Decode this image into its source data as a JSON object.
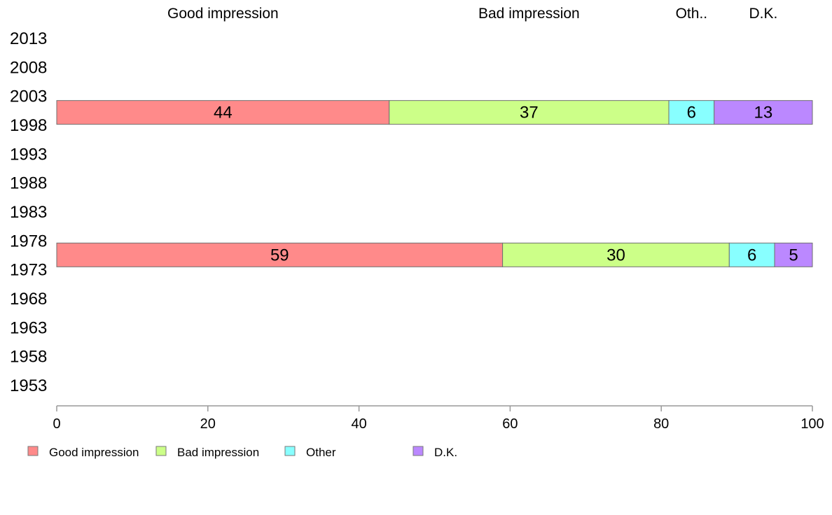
{
  "chart_data": {
    "type": "bar",
    "orientation": "horizontal",
    "stacked": true,
    "categories": [
      "2013",
      "2008",
      "2003",
      "1998",
      "1993",
      "1988",
      "1983",
      "1978",
      "1973",
      "1968",
      "1963",
      "1958",
      "1953"
    ],
    "series": [
      {
        "name": "Good impression",
        "short_label": "Good impression",
        "color": "#ff8a8a",
        "values": [
          null,
          null,
          44,
          null,
          null,
          null,
          null,
          59,
          null,
          null,
          null,
          null,
          null
        ]
      },
      {
        "name": "Bad impression",
        "short_label": "Bad impression",
        "color": "#ccff88",
        "values": [
          null,
          null,
          37,
          null,
          null,
          null,
          null,
          30,
          null,
          null,
          null,
          null,
          null
        ]
      },
      {
        "name": "Other",
        "short_label": "Oth..",
        "color": "#88ffff",
        "values": [
          null,
          null,
          6,
          null,
          null,
          null,
          null,
          6,
          null,
          null,
          null,
          null,
          null
        ]
      },
      {
        "name": "D.K.",
        "short_label": "D.K.",
        "color": "#bb88ff",
        "values": [
          null,
          null,
          13,
          null,
          null,
          null,
          null,
          5,
          null,
          null,
          null,
          null,
          null
        ]
      }
    ],
    "x_ticks": [
      0,
      20,
      40,
      60,
      80,
      100
    ],
    "xlim": [
      0,
      100
    ],
    "grid": false,
    "legend_position": "bottom-left"
  }
}
